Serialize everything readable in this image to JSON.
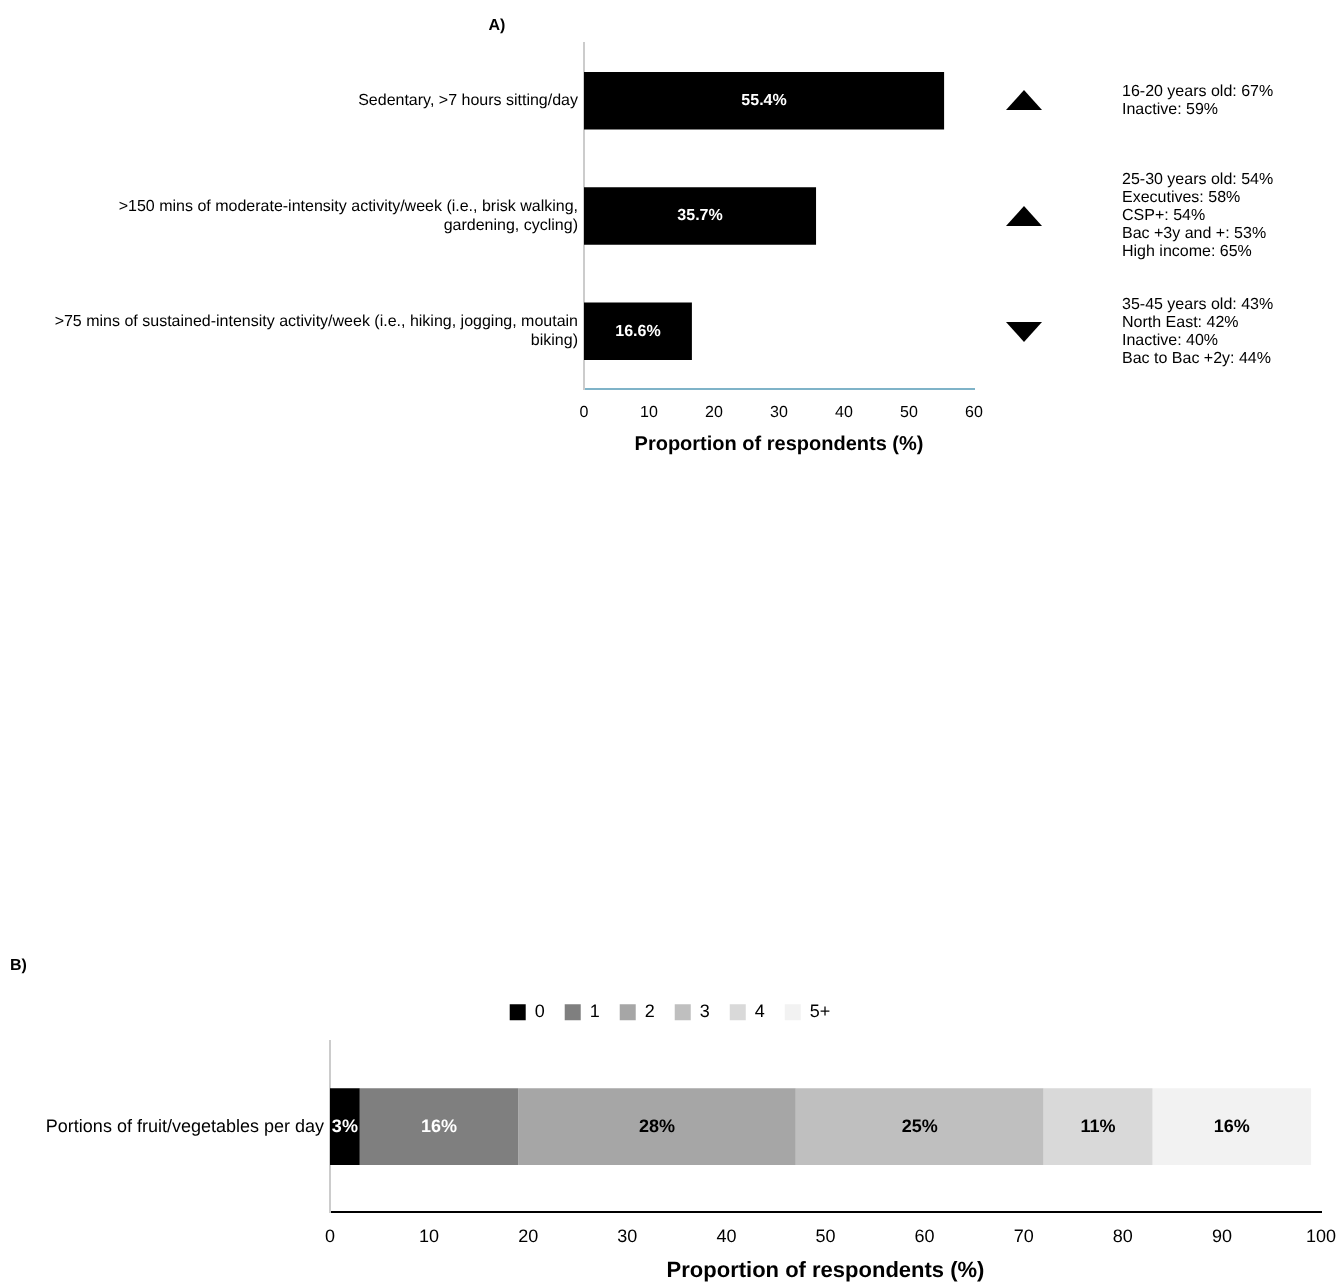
{
  "chart_data": [
    {
      "type": "bar",
      "orientation": "horizontal",
      "title": "A)",
      "xlabel": "Proportion of respondents (%)",
      "categories": [
        "Sedentary, >7 hours sitting/day",
        ">150 mins of moderate-intensity activity/week (i.e., brisk walking, gardening, cycling)",
        ">75 mins of sustained-intensity activity/week (i.e., hiking, jogging, moutain biking)"
      ],
      "values": [
        55.4,
        35.7,
        16.6
      ],
      "color": "#000000",
      "value_labels": [
        "55.4%",
        "35.7%",
        "16.6%"
      ],
      "xlim": [
        0,
        60
      ],
      "xticks": [
        0,
        10,
        20,
        30,
        40,
        50,
        60
      ],
      "grid": false,
      "legend": false,
      "annotations": [
        "16-20 years old: 67%\nInactive: 59%",
        "25-30 years old: 54%\nExecutives: 58%\nCSP+: 54%\nBac +3y and +: 53%\nHigh income: 65%",
        "35-45 years old: 43%\nNorth East: 42%\nInactive: 40%\nBac to Bac +2y: 44%"
      ]
    },
    {
      "type": "bar",
      "orientation": "horizontal",
      "stacked": true,
      "title": "B)",
      "xlabel": "Proportion of respondents (%)",
      "categories": [
        "Portions of fruit/vegetables per day"
      ],
      "series": [
        {
          "name": "0",
          "color": "#000000",
          "values": [
            3
          ],
          "value_labels": [
            "3%"
          ]
        },
        {
          "name": "1",
          "color": "#7f7f7f",
          "values": [
            16
          ],
          "value_labels": [
            "16%"
          ]
        },
        {
          "name": "2",
          "color": "#a6a6a6",
          "values": [
            28
          ],
          "value_labels": [
            "28%"
          ]
        },
        {
          "name": "3",
          "color": "#bfbfbf",
          "values": [
            25
          ],
          "value_labels": [
            "25%"
          ]
        },
        {
          "name": "4",
          "color": "#d9d9d9",
          "values": [
            11
          ],
          "value_labels": [
            "11%"
          ]
        },
        {
          "name": "5+",
          "color": "#f2f2f2",
          "values": [
            16
          ],
          "value_labels": [
            "16%"
          ]
        }
      ],
      "xlim": [
        0,
        100
      ],
      "xticks": [
        0,
        10,
        20,
        30,
        40,
        50,
        60,
        70,
        80,
        90,
        100
      ],
      "grid": false,
      "legend": "top"
    }
  ]
}
